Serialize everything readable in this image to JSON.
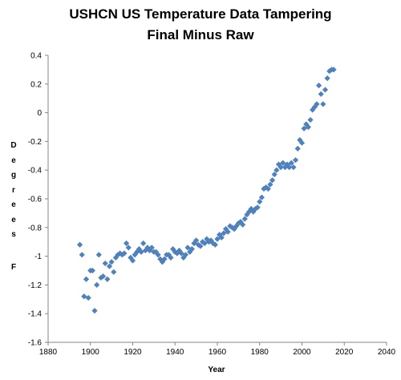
{
  "chart_data": {
    "type": "scatter",
    "title": "USHCN US Temperature Data Tampering",
    "subtitle": "Final Minus Raw",
    "xlabel": "Year",
    "ylabel": "Degrees F",
    "xlim": [
      1880,
      2040
    ],
    "ylim": [
      -1.6,
      0.4
    ],
    "x_ticks": [
      1880,
      1900,
      1920,
      1940,
      1960,
      1980,
      2000,
      2020,
      2040
    ],
    "y_ticks": [
      0.4,
      0.2,
      0,
      -0.2,
      -0.4,
      -0.6,
      -0.8,
      -1,
      -1.2,
      -1.4,
      -1.6
    ],
    "grid": false,
    "legend": "none",
    "marker_color": "#4F81BD",
    "marker": "diamond",
    "points": [
      [
        1895,
        -0.92
      ],
      [
        1896,
        -0.99
      ],
      [
        1897,
        -1.28
      ],
      [
        1898,
        -1.16
      ],
      [
        1899,
        -1.29
      ],
      [
        1900,
        -1.1
      ],
      [
        1901,
        -1.1
      ],
      [
        1902,
        -1.38
      ],
      [
        1903,
        -1.2
      ],
      [
        1904,
        -0.99
      ],
      [
        1905,
        -1.15
      ],
      [
        1906,
        -1.14
      ],
      [
        1907,
        -1.05
      ],
      [
        1908,
        -1.16
      ],
      [
        1909,
        -1.07
      ],
      [
        1910,
        -1.04
      ],
      [
        1911,
        -1.11
      ],
      [
        1912,
        -1.01
      ],
      [
        1913,
        -0.99
      ],
      [
        1914,
        -0.98
      ],
      [
        1915,
        -0.99
      ],
      [
        1916,
        -0.98
      ],
      [
        1917,
        -0.91
      ],
      [
        1918,
        -0.94
      ],
      [
        1919,
        -1.01
      ],
      [
        1920,
        -1.03
      ],
      [
        1921,
        -0.99
      ],
      [
        1922,
        -0.97
      ],
      [
        1923,
        -0.95
      ],
      [
        1924,
        -0.97
      ],
      [
        1925,
        -0.91
      ],
      [
        1926,
        -0.96
      ],
      [
        1927,
        -0.94
      ],
      [
        1928,
        -0.96
      ],
      [
        1929,
        -0.94
      ],
      [
        1930,
        -0.97
      ],
      [
        1931,
        -0.97
      ],
      [
        1932,
        -0.99
      ],
      [
        1933,
        -1.02
      ],
      [
        1934,
        -1.04
      ],
      [
        1935,
        -1.02
      ],
      [
        1936,
        -0.99
      ],
      [
        1937,
        -0.99
      ],
      [
        1938,
        -1.01
      ],
      [
        1939,
        -0.95
      ],
      [
        1940,
        -0.97
      ],
      [
        1941,
        -0.98
      ],
      [
        1942,
        -0.96
      ],
      [
        1943,
        -0.98
      ],
      [
        1944,
        -1.01
      ],
      [
        1945,
        -0.99
      ],
      [
        1946,
        -0.94
      ],
      [
        1947,
        -0.97
      ],
      [
        1948,
        -0.95
      ],
      [
        1949,
        -0.91
      ],
      [
        1950,
        -0.89
      ],
      [
        1951,
        -0.92
      ],
      [
        1952,
        -0.93
      ],
      [
        1953,
        -0.9
      ],
      [
        1954,
        -0.91
      ],
      [
        1955,
        -0.88
      ],
      [
        1956,
        -0.9
      ],
      [
        1957,
        -0.89
      ],
      [
        1958,
        -0.91
      ],
      [
        1959,
        -0.92
      ],
      [
        1960,
        -0.88
      ],
      [
        1961,
        -0.85
      ],
      [
        1962,
        -0.87
      ],
      [
        1963,
        -0.84
      ],
      [
        1964,
        -0.81
      ],
      [
        1965,
        -0.83
      ],
      [
        1966,
        -0.79
      ],
      [
        1967,
        -0.8
      ],
      [
        1968,
        -0.81
      ],
      [
        1969,
        -0.79
      ],
      [
        1970,
        -0.77
      ],
      [
        1971,
        -0.76
      ],
      [
        1972,
        -0.78
      ],
      [
        1973,
        -0.74
      ],
      [
        1974,
        -0.71
      ],
      [
        1975,
        -0.69
      ],
      [
        1976,
        -0.67
      ],
      [
        1977,
        -0.69
      ],
      [
        1978,
        -0.67
      ],
      [
        1979,
        -0.66
      ],
      [
        1980,
        -0.62
      ],
      [
        1981,
        -0.59
      ],
      [
        1982,
        -0.53
      ],
      [
        1983,
        -0.52
      ],
      [
        1984,
        -0.53
      ],
      [
        1985,
        -0.5
      ],
      [
        1986,
        -0.47
      ],
      [
        1987,
        -0.43
      ],
      [
        1988,
        -0.4
      ],
      [
        1989,
        -0.36
      ],
      [
        1990,
        -0.38
      ],
      [
        1991,
        -0.35
      ],
      [
        1992,
        -0.38
      ],
      [
        1993,
        -0.36
      ],
      [
        1994,
        -0.38
      ],
      [
        1995,
        -0.35
      ],
      [
        1996,
        -0.38
      ],
      [
        1997,
        -0.33
      ],
      [
        1998,
        -0.25
      ],
      [
        1999,
        -0.19
      ],
      [
        2000,
        -0.21
      ],
      [
        2001,
        -0.11
      ],
      [
        2002,
        -0.08
      ],
      [
        2003,
        -0.1
      ],
      [
        2004,
        -0.05
      ],
      [
        2005,
        0.02
      ],
      [
        2006,
        0.04
      ],
      [
        2007,
        0.06
      ],
      [
        2008,
        0.19
      ],
      [
        2009,
        0.13
      ],
      [
        2010,
        0.06
      ],
      [
        2011,
        0.16
      ],
      [
        2012,
        0.24
      ],
      [
        2013,
        0.29
      ],
      [
        2014,
        0.3
      ],
      [
        2015,
        0.3
      ]
    ]
  }
}
